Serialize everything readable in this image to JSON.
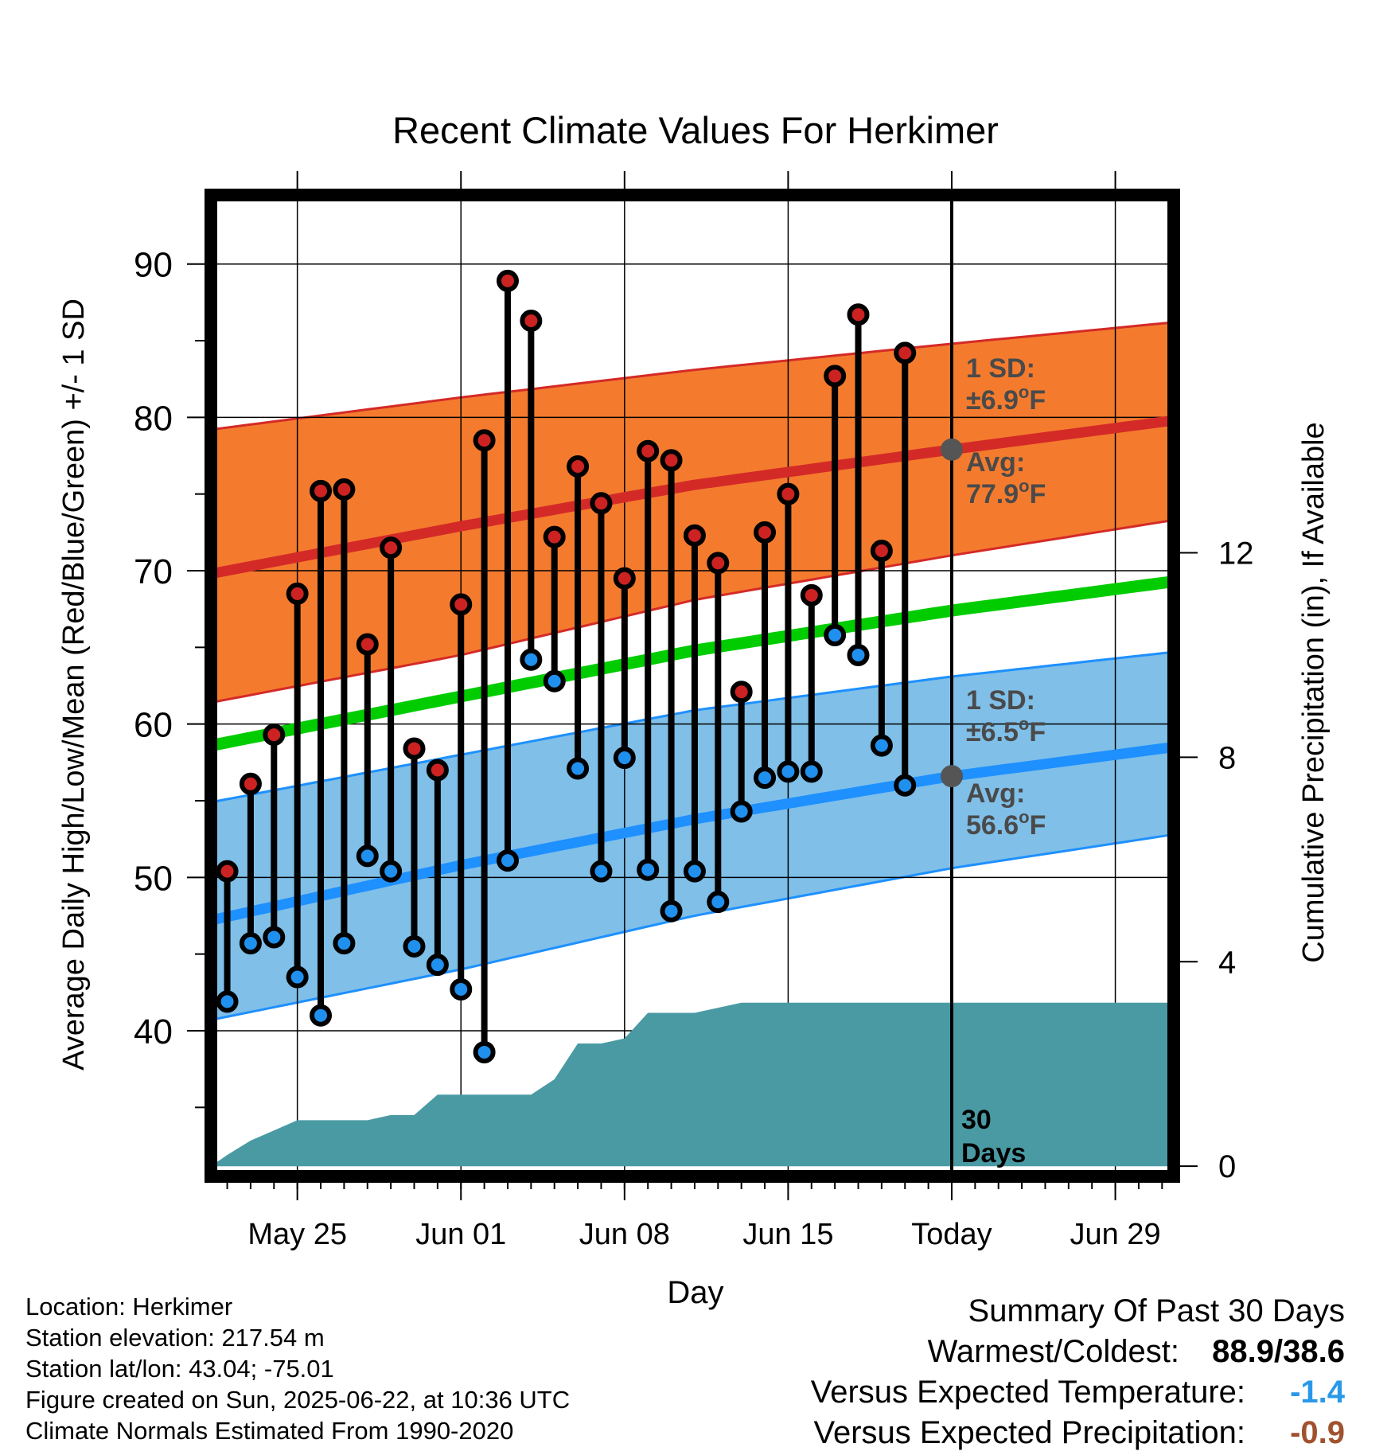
{
  "title": "Recent Climate Values For Herkimer",
  "colors": {
    "high_dot": "#cc2222",
    "low_dot": "#2090ee",
    "high_band": "#f47b2e",
    "high_line": "#d42a27",
    "low_band": "#7fbfe8",
    "low_line": "#1e90ff",
    "mean_line": "#00cc00",
    "precip": "#4a9aa4",
    "annotation": "#4a4a4a",
    "temp_departure": "#2a98e8",
    "precip_departure": "#a0522d"
  },
  "chart_data": {
    "type": "line",
    "xlabel": "Day",
    "ylabel": "Average Daily High/Low/Mean (Red/Blue/Green) +/- 1 SD",
    "y2label": "Cumulative Precipitation (in), If Available",
    "x_ticks": [
      "May 25",
      "Jun 01",
      "Jun 08",
      "Jun 15",
      "Today",
      "Jun 29"
    ],
    "x_tick_days": [
      3,
      10,
      17,
      24,
      31,
      38
    ],
    "xlim": [
      -0.7,
      40.5
    ],
    "ylim": [
      30.5,
      94.5
    ],
    "y_ticks": [
      40,
      50,
      60,
      70,
      80,
      90
    ],
    "y2lim": [
      -0.2,
      19
    ],
    "y2_ticks": [
      0,
      4,
      8,
      12
    ],
    "days": [
      0,
      1,
      2,
      3,
      4,
      5,
      6,
      7,
      8,
      9,
      10,
      11,
      12,
      13,
      14,
      15,
      16,
      17,
      18,
      19,
      20,
      21,
      22,
      23,
      24,
      25,
      26,
      27,
      28,
      29
    ],
    "observed_high": [
      50.4,
      56.1,
      59.3,
      68.5,
      75.2,
      75.3,
      65.2,
      71.5,
      58.4,
      57.0,
      67.8,
      78.5,
      88.9,
      86.3,
      72.2,
      76.8,
      74.4,
      69.5,
      77.8,
      77.2,
      72.3,
      70.5,
      62.1,
      72.5,
      75.0,
      68.4,
      82.7,
      86.7,
      71.3,
      84.2
    ],
    "observed_low": [
      41.9,
      45.7,
      46.1,
      43.5,
      41.0,
      45.7,
      51.4,
      50.4,
      45.5,
      44.3,
      42.7,
      38.6,
      51.1,
      64.2,
      62.8,
      57.1,
      50.4,
      57.8,
      50.5,
      47.8,
      50.4,
      48.4,
      54.3,
      56.5,
      56.9,
      56.9,
      65.8,
      64.5,
      58.6,
      56.0
    ],
    "normal_high": {
      "days": [
        -0.7,
        10,
        20,
        31,
        40.5
      ],
      "mean": [
        69.8,
        72.9,
        75.6,
        77.9,
        79.8
      ],
      "upper": [
        79.2,
        81.3,
        83.1,
        84.8,
        86.2
      ],
      "lower": [
        61.4,
        64.5,
        68.1,
        71.0,
        73.3
      ]
    },
    "normal_low": {
      "days": [
        -0.7,
        10,
        20,
        31,
        40.5
      ],
      "mean": [
        47.2,
        50.8,
        53.8,
        56.6,
        58.5
      ],
      "upper": [
        54.9,
        58.0,
        60.9,
        63.1,
        64.7
      ],
      "lower": [
        40.7,
        44.0,
        47.5,
        50.6,
        52.8
      ]
    },
    "normal_mean": {
      "days": [
        -0.7,
        10,
        20,
        31,
        40.5
      ],
      "values": [
        58.6,
        61.8,
        64.8,
        67.4,
        69.3
      ]
    },
    "cumulative_precip": {
      "days": [
        -0.7,
        0,
        1,
        2,
        3,
        4,
        5,
        6,
        7,
        8,
        9,
        10,
        11,
        12,
        13,
        14,
        15,
        16,
        17,
        18,
        19,
        20,
        21,
        22,
        23,
        24,
        25,
        26,
        27,
        28,
        29,
        30,
        31,
        40.5
      ],
      "values": [
        0.0,
        0.22,
        0.5,
        0.7,
        0.9,
        0.9,
        0.9,
        0.9,
        1.0,
        1.0,
        1.4,
        1.4,
        1.4,
        1.4,
        1.4,
        1.7,
        2.4,
        2.4,
        2.5,
        3.0,
        3.0,
        3.0,
        3.1,
        3.2,
        3.2,
        3.2,
        3.2,
        3.2,
        3.2,
        3.2,
        3.2,
        3.2,
        3.2,
        3.2
      ]
    },
    "today_day": 31,
    "today_high_avg": 77.9,
    "today_low_avg": 56.6,
    "annotations": {
      "high_sd_label": "1 SD:",
      "high_sd_value": "±6.9",
      "high_avg_label": "Avg:",
      "high_avg_value": "77.9",
      "low_sd_label": "1 SD:",
      "low_sd_value": "±6.5",
      "low_avg_label": "Avg:",
      "low_avg_value": "56.6",
      "unit": "F",
      "degree": "o",
      "days_number": "30",
      "days_word": "Days"
    }
  },
  "info": {
    "location": "Location: Herkimer",
    "elevation": "Station elevation: 217.54 m",
    "latlon": "Station lat/lon: 43.04; -75.01",
    "created": "Figure created on Sun, 2025-06-22, at 10:36 UTC",
    "normals": "Climate Normals Estimated From 1990-2020"
  },
  "summary": {
    "heading": "Summary Of Past 30 Days",
    "warm_cold_label": "Warmest/Coldest:",
    "warm_cold_value": "88.9/38.6",
    "temp_label": "Versus Expected Temperature:",
    "temp_value": "-1.4",
    "precip_label": "Versus Expected Precipitation:",
    "precip_value": "-0.9"
  }
}
